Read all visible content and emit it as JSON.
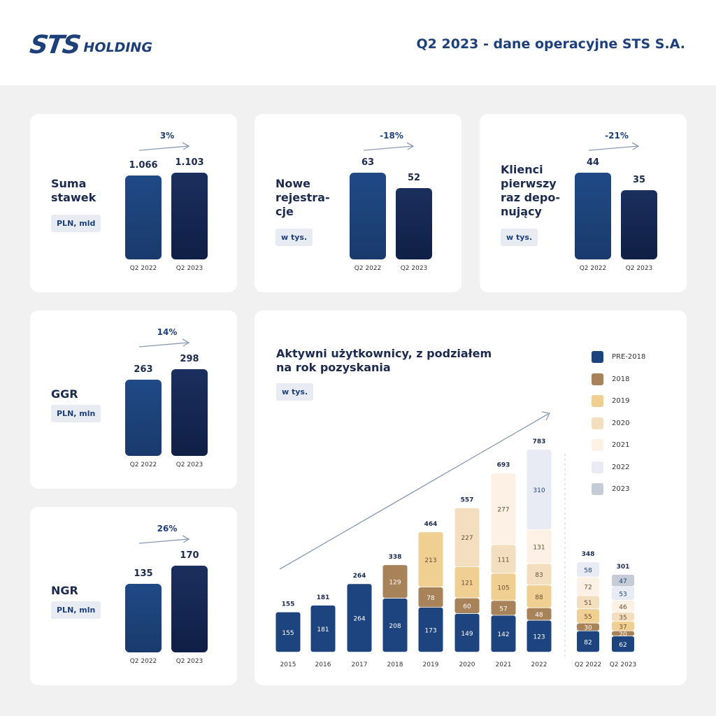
{
  "header": {
    "logo_mark": "STS",
    "logo_sub": "HOLDING",
    "title": "Q2 2023 - dane operacyjne STS S.A."
  },
  "kpi": [
    {
      "title_lines": [
        "Suma",
        "stawek"
      ],
      "unit": "PLN, mld",
      "change": "3%",
      "periods": [
        "Q2 2022",
        "Q2 2023"
      ],
      "values_label": [
        "1.066",
        "1.103"
      ],
      "values": [
        1.066,
        1.103
      ]
    },
    {
      "title_lines": [
        "Nowe",
        "rejestra-",
        "cje"
      ],
      "unit": "w tys.",
      "change": "-18%",
      "periods": [
        "Q2 2022",
        "Q2 2023"
      ],
      "values_label": [
        "63",
        "52"
      ],
      "values": [
        63,
        52
      ]
    },
    {
      "title_lines": [
        "Klienci",
        "pierwszy",
        "raz depo-",
        "nujący"
      ],
      "unit": "w tys.",
      "change": "-21%",
      "periods": [
        "Q2 2022",
        "Q2 2023"
      ],
      "values_label": [
        "44",
        "35"
      ],
      "values": [
        44,
        35
      ]
    },
    {
      "title_lines": [
        "GGR"
      ],
      "unit": "PLN, mln",
      "change": "14%",
      "periods": [
        "Q2 2022",
        "Q2 2023"
      ],
      "values_label": [
        "263",
        "298"
      ],
      "values": [
        263,
        298
      ]
    },
    {
      "title_lines": [
        "NGR"
      ],
      "unit": "PLN, mln",
      "change": "26%",
      "periods": [
        "Q2 2022",
        "Q2 2023"
      ],
      "values_label": [
        "135",
        "170"
      ],
      "values": [
        135,
        170
      ]
    }
  ],
  "chart_data": {
    "type": "bar",
    "stacked": true,
    "title": "Aktywni użytkownicy, z podziałem na rok pozyskania",
    "title_lines": [
      "Aktywni użytkownicy, z podziałem",
      "na rok pozyskania"
    ],
    "unit": "w tys.",
    "categories": [
      "2015",
      "2016",
      "2017",
      "2018",
      "2019",
      "2020",
      "2021",
      "2022",
      "Q2 2022",
      "Q2 2023"
    ],
    "totals": [
      155,
      181,
      264,
      338,
      464,
      557,
      693,
      783,
      348,
      301
    ],
    "series": [
      {
        "name": "PRE-2018",
        "color": "#1d447f",
        "values": [
          155,
          181,
          264,
          208,
          173,
          149,
          142,
          123,
          82,
          62
        ]
      },
      {
        "name": "2018",
        "color": "#a8835a",
        "values": [
          null,
          null,
          null,
          129,
          78,
          60,
          57,
          48,
          30,
          20
        ]
      },
      {
        "name": "2019",
        "color": "#f0cf92",
        "values": [
          null,
          null,
          null,
          null,
          213,
          121,
          105,
          88,
          55,
          37
        ]
      },
      {
        "name": "2020",
        "color": "#f3dfc0",
        "values": [
          null,
          null,
          null,
          null,
          null,
          227,
          111,
          83,
          51,
          35
        ]
      },
      {
        "name": "2021",
        "color": "#fdf1e6",
        "values": [
          null,
          null,
          null,
          null,
          null,
          null,
          277,
          131,
          72,
          46
        ]
      },
      {
        "name": "2022",
        "color": "#e8ebf3",
        "values": [
          null,
          null,
          null,
          null,
          null,
          null,
          null,
          310,
          58,
          53
        ]
      },
      {
        "name": "2023",
        "color": "#c5ccd8",
        "values": [
          null,
          null,
          null,
          null,
          null,
          null,
          null,
          null,
          null,
          47
        ]
      }
    ],
    "legend_position": "right"
  }
}
